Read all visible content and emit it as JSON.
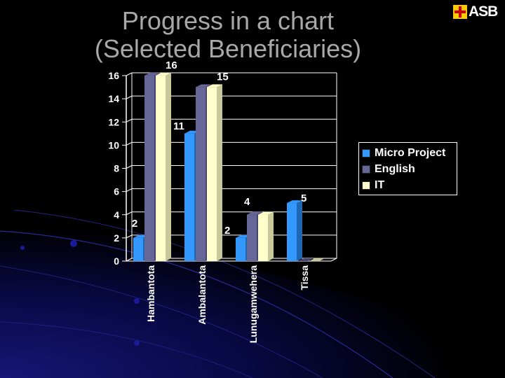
{
  "title_lines": [
    "Progress in a chart",
    "(Selected Beneficiaries)"
  ],
  "logo": {
    "text": "ASB"
  },
  "colors": {
    "background": "#000000",
    "micro_project": "#3399ff",
    "english": "#666699",
    "it": "#ffffcc",
    "title": "#a8a8a8"
  },
  "chart_data": {
    "type": "bar",
    "categories": [
      "Hambantota",
      "Ambalantota",
      "Lunugamwehera",
      "Tissa"
    ],
    "series": [
      {
        "name": "Micro Project",
        "values": [
          2,
          11,
          2,
          5
        ]
      },
      {
        "name": "English",
        "values": [
          16,
          15,
          4,
          0
        ]
      },
      {
        "name": "IT",
        "values": [
          16,
          15,
          4,
          0
        ]
      }
    ],
    "data_labels": [
      "2",
      "16",
      "11",
      "15",
      "2",
      "4",
      "5"
    ],
    "ylim": [
      0,
      16
    ],
    "yticks": [
      "0",
      "2",
      "4",
      "6",
      "8",
      "10",
      "12",
      "14",
      "16"
    ],
    "grid": true,
    "legend": "right",
    "style": "3d-clustered-column"
  }
}
